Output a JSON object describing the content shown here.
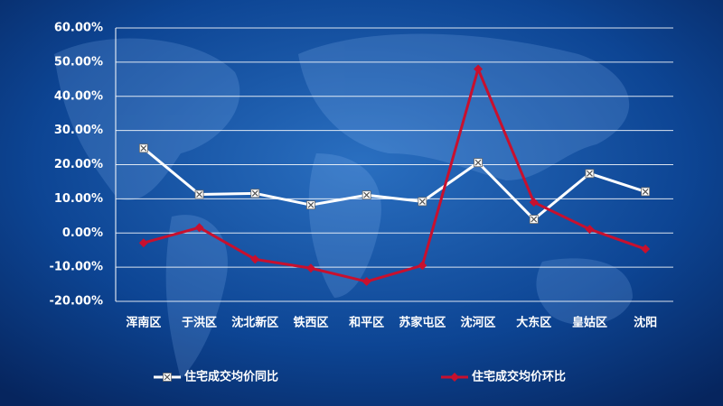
{
  "chart_data": {
    "type": "line",
    "categories": [
      "浑南区",
      "于洪区",
      "沈北新区",
      "铁西区",
      "和平区",
      "苏家屯区",
      "沈河区",
      "大东区",
      "皇姑区",
      "沈阳"
    ],
    "series": [
      {
        "name": "住宅成交均价同比",
        "color": "#ffffff",
        "marker": "square-x",
        "values": [
          24.8,
          11.3,
          11.6,
          8.2,
          11.1,
          9.2,
          20.6,
          4.0,
          17.4,
          12.1
        ]
      },
      {
        "name": "住宅成交均价环比",
        "color": "#c8102e",
        "marker": "diamond",
        "values": [
          -2.9,
          1.6,
          -7.7,
          -10.3,
          -14.2,
          -9.5,
          48.0,
          9.0,
          1.1,
          -4.7
        ]
      }
    ],
    "ylim": [
      -20,
      60
    ],
    "yticks": [
      {
        "value": -20,
        "label": "-20.00%"
      },
      {
        "value": -10,
        "label": "-10.00%"
      },
      {
        "value": 0,
        "label": "0.00%"
      },
      {
        "value": 10,
        "label": "10.00%"
      },
      {
        "value": 20,
        "label": "20.00%"
      },
      {
        "value": 30,
        "label": "30.00%"
      },
      {
        "value": 40,
        "label": "40.00%"
      },
      {
        "value": 50,
        "label": "50.00%"
      },
      {
        "value": 60,
        "label": "60.00%"
      }
    ],
    "grid": true,
    "legend": "bottom"
  }
}
